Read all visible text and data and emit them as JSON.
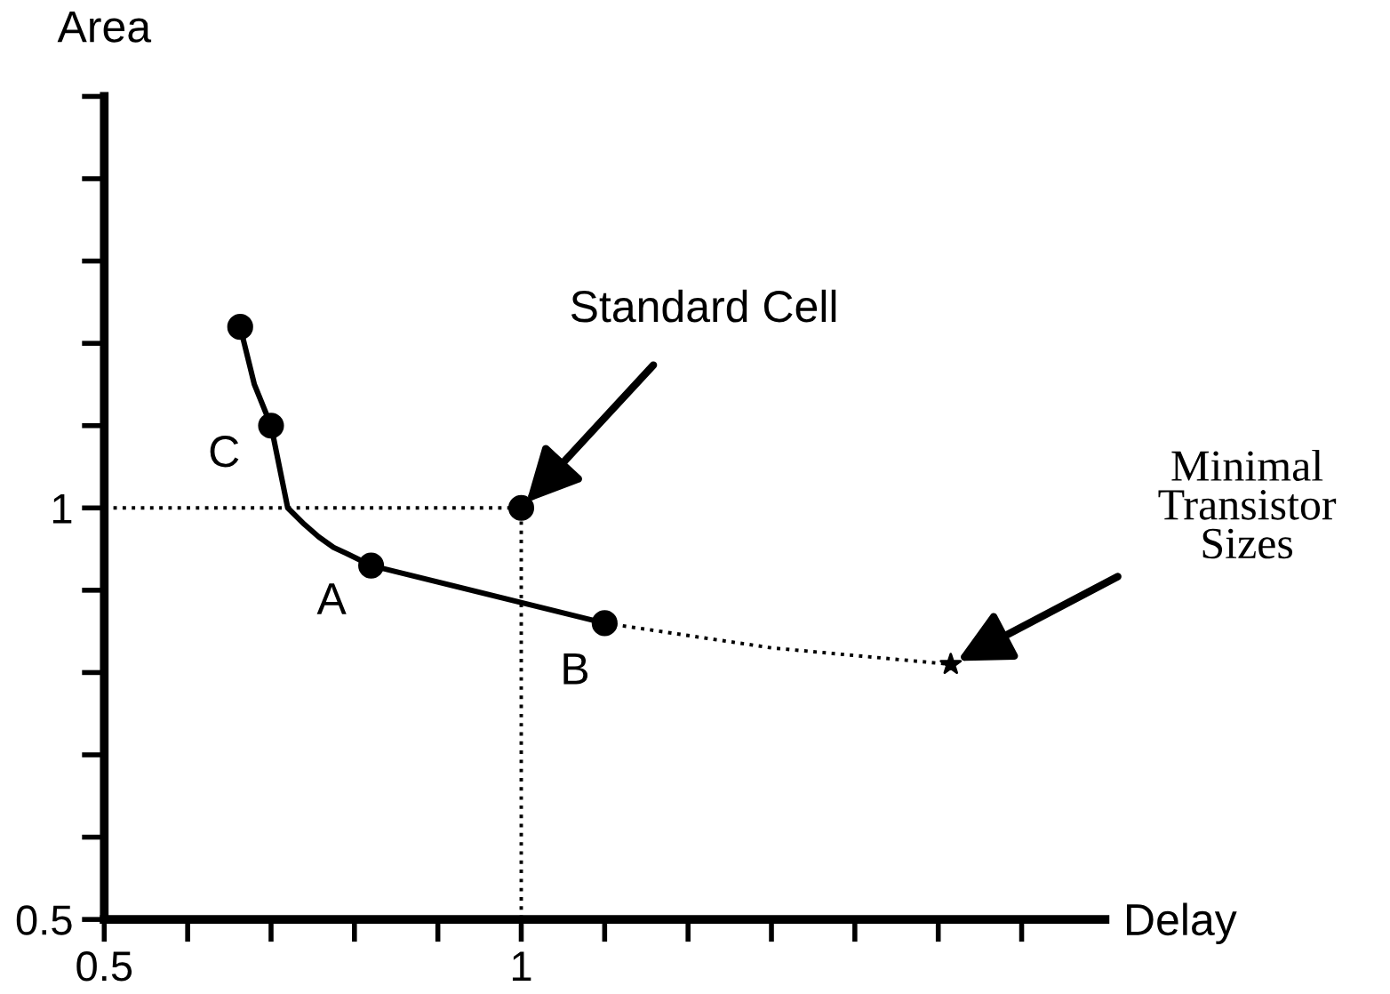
{
  "chart_data": {
    "type": "line",
    "xlabel": "Delay",
    "ylabel": "Area",
    "xlim": [
      0.5,
      1.7
    ],
    "ylim": [
      0.5,
      1.5
    ],
    "xticks": [
      0.5,
      {
        "value": 0.6,
        "label": null
      },
      {
        "value": 0.7,
        "label": null
      },
      {
        "value": 0.8,
        "label": null
      },
      {
        "value": 0.9,
        "label": null
      },
      1,
      {
        "value": 1.1,
        "label": null
      },
      {
        "value": 1.2,
        "label": null
      },
      {
        "value": 1.3,
        "label": null
      },
      {
        "value": 1.4,
        "label": null
      },
      {
        "value": 1.5,
        "label": null
      },
      {
        "value": 1.6,
        "label": null
      }
    ],
    "yticks": [
      0.5,
      {
        "value": 0.6,
        "label": null
      },
      {
        "value": 0.7,
        "label": null
      },
      {
        "value": 0.8,
        "label": null
      },
      {
        "value": 0.9,
        "label": null
      },
      1,
      {
        "value": 1.1,
        "label": null
      },
      {
        "value": 1.2,
        "label": null
      },
      {
        "value": 1.3,
        "label": null
      },
      {
        "value": 1.4,
        "label": null
      },
      {
        "value": 1.5,
        "label": null
      }
    ],
    "grid": false,
    "legend": false,
    "series": [
      {
        "color": "#000000",
        "line_style": "solid",
        "marker": "none",
        "x": [
          0.663,
          0.68,
          0.7,
          0.72,
          0.74,
          0.757,
          0.775,
          0.79,
          0.82,
          1.1
        ],
        "values": [
          1.22,
          1.15,
          1.1,
          1.0,
          0.98,
          0.965,
          0.952,
          0.945,
          0.93,
          0.86
        ]
      },
      {
        "color": "#000000",
        "line_style": "dotted",
        "marker": "none",
        "x": [
          1.1,
          1.3,
          1.515
        ],
        "values": [
          0.86,
          0.83,
          0.81
        ]
      },
      {
        "color": "#000000",
        "line_style": "dotted",
        "marker": "none",
        "x": [
          0.5,
          1.0,
          1.0
        ],
        "values": [
          1.0,
          1.0,
          0.5
        ]
      },
      {
        "type": "scatter",
        "color": "#000000",
        "marker": "circle",
        "x": [
          0.663,
          0.7,
          0.82,
          1.1,
          1.0
        ],
        "values": [
          1.22,
          1.1,
          0.93,
          0.86,
          1.0
        ]
      },
      {
        "type": "scatter",
        "color": "#000000",
        "marker": "star",
        "x": [
          1.515
        ],
        "values": [
          0.81
        ]
      }
    ],
    "annotations": [
      {
        "text": "C",
        "x": 0.7,
        "y": 1.1
      },
      {
        "text": "A",
        "x": 0.82,
        "y": 0.93
      },
      {
        "text": "B",
        "x": 1.1,
        "y": 0.86
      },
      {
        "text": "Standard Cell",
        "x": 1.0,
        "y": 1.0
      },
      {
        "text": "Minimal\nTransistor\nSizes",
        "x": 1.515,
        "y": 0.81
      }
    ]
  }
}
